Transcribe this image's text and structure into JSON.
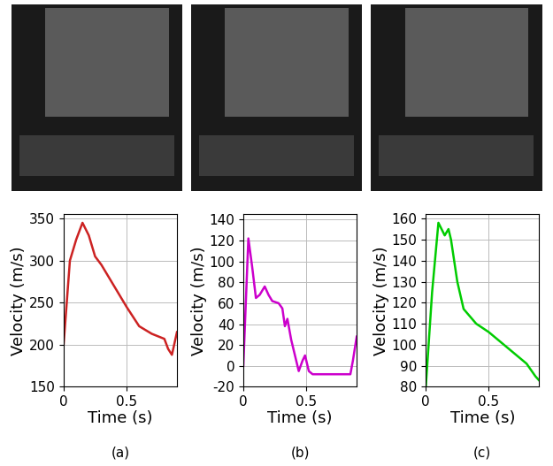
{
  "chart_data": [
    {
      "type": "line",
      "title": "(a)",
      "x_label": "Time (s)",
      "y_label": "Velocity (m/s)",
      "x": [
        0,
        0.05,
        0.1,
        0.15,
        0.2,
        0.25,
        0.3,
        0.4,
        0.5,
        0.6,
        0.7,
        0.8,
        0.83,
        0.86,
        0.9
      ],
      "values": [
        200,
        300,
        325,
        345,
        330,
        305,
        295,
        270,
        245,
        222,
        213,
        207,
        195,
        188,
        215
      ],
      "color": "#cc2222",
      "xlim": [
        0,
        0.9
      ],
      "xticks": [
        0,
        0.5
      ],
      "ylim": [
        150,
        355
      ],
      "yticks": [
        150,
        200,
        250,
        300,
        350
      ],
      "grid": true
    },
    {
      "type": "line",
      "title": "(b)",
      "x_label": "Time (s)",
      "y_label": "Velocity (m/s)",
      "x": [
        0,
        0.04,
        0.07,
        0.1,
        0.13,
        0.17,
        0.2,
        0.23,
        0.28,
        0.31,
        0.33,
        0.35,
        0.38,
        0.42,
        0.44,
        0.47,
        0.49,
        0.52,
        0.55,
        0.7,
        0.85,
        0.87,
        0.9
      ],
      "values": [
        0,
        122,
        95,
        65,
        68,
        76,
        68,
        62,
        60,
        55,
        38,
        45,
        25,
        5,
        -5,
        5,
        10,
        -5,
        -8,
        -8,
        -8,
        5,
        28
      ],
      "color": "#cc00cc",
      "xlim": [
        0,
        0.9
      ],
      "xticks": [
        0,
        0.5
      ],
      "ylim": [
        -20,
        145
      ],
      "yticks": [
        -20,
        0,
        20,
        40,
        60,
        80,
        100,
        120,
        140
      ],
      "grid": true
    },
    {
      "type": "line",
      "title": "(c)",
      "x_label": "Time (s)",
      "y_label": "Velocity (m/s)",
      "x": [
        0,
        0.05,
        0.1,
        0.15,
        0.18,
        0.2,
        0.25,
        0.3,
        0.4,
        0.5,
        0.6,
        0.7,
        0.8,
        0.87,
        0.9
      ],
      "values": [
        80,
        125,
        158,
        152,
        155,
        150,
        130,
        117,
        110,
        106,
        101,
        96,
        91,
        85,
        83
      ],
      "color": "#00cc00",
      "xlim": [
        0,
        0.9
      ],
      "xticks": [
        0,
        0.5
      ],
      "ylim": [
        80,
        162
      ],
      "yticks": [
        80,
        90,
        100,
        110,
        120,
        130,
        140,
        150,
        160
      ],
      "grid": true
    }
  ]
}
